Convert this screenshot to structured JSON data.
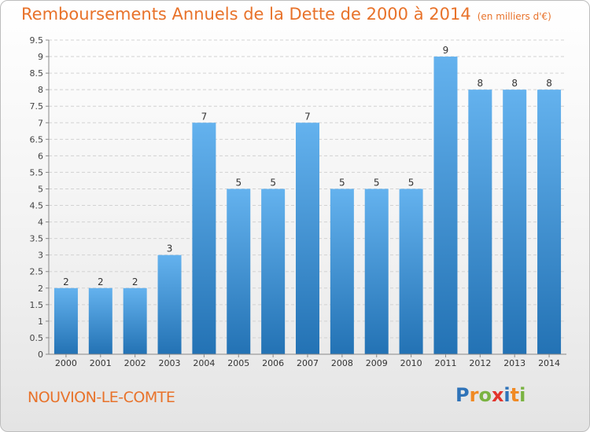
{
  "title": "Remboursements Annuels de la Dette de 2000 à 2014",
  "unit_label": "(en milliers d'€)",
  "commune": "NOUVION-LE-COMTE",
  "brand": {
    "letters": [
      "P",
      "r",
      "o",
      "x",
      "i",
      "t",
      "i"
    ],
    "colors": [
      "#2f73b8",
      "#f08a24",
      "#7ab342",
      "#e2342c",
      "#2f73b8",
      "#f08a24",
      "#7ab342"
    ]
  },
  "colors": {
    "accent": "#e8722a",
    "bar_top": "#64b2ee",
    "bar_bottom": "#2372b4"
  },
  "chart_data": {
    "type": "bar",
    "categories": [
      "2000",
      "2001",
      "2002",
      "2003",
      "2004",
      "2005",
      "2006",
      "2007",
      "2008",
      "2009",
      "2010",
      "2011",
      "2012",
      "2013",
      "2014"
    ],
    "values": [
      2,
      2,
      2,
      3,
      7,
      5,
      5,
      7,
      5,
      5,
      5,
      9,
      8,
      8,
      8
    ],
    "data_labels": [
      "2",
      "2",
      "2",
      "3",
      "7",
      "5",
      "5",
      "7",
      "5",
      "5",
      "5",
      "9",
      "8",
      "8",
      "8"
    ],
    "y_ticks": [
      "0",
      "0.5",
      "1",
      "1.5",
      "2",
      "2.5",
      "3",
      "3.5",
      "4",
      "4.5",
      "5",
      "5.5",
      "6",
      "6.5",
      "7",
      "7.5",
      "8",
      "8.5",
      "9",
      "9.5"
    ],
    "ylim": [
      0,
      9.5
    ],
    "grid": true,
    "legend": "none"
  }
}
